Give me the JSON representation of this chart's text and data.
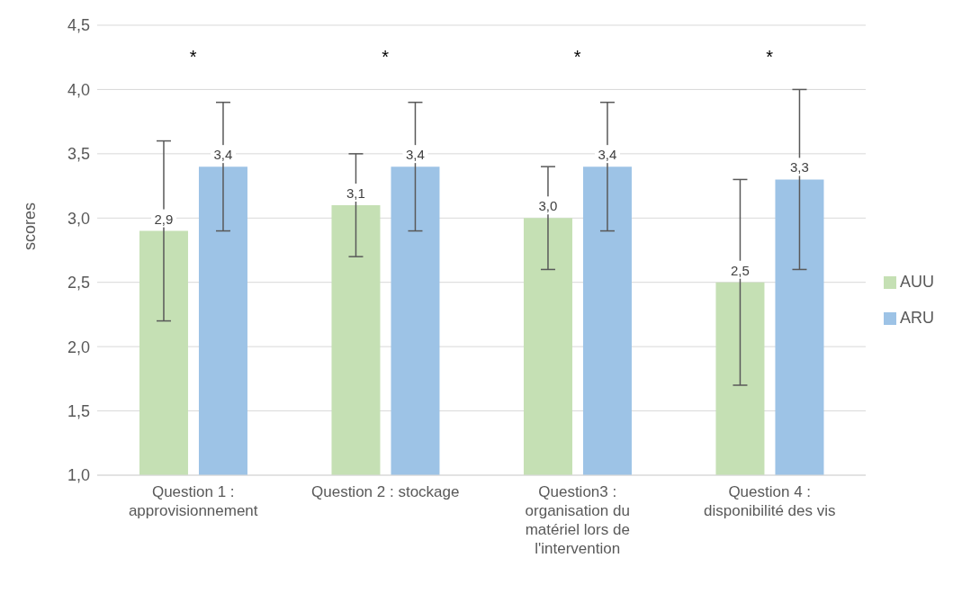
{
  "chart_data": {
    "type": "bar",
    "ylabel": "scores",
    "categories": [
      "Question 1 : approvisionnement",
      "Question 2 : stockage",
      "Question3 : organisation du matériel  lors de l'intervention",
      "Question 4 : disponibilité des vis"
    ],
    "series": [
      {
        "name": "AUU",
        "color": "#c5e0b4",
        "values": [
          2.9,
          3.1,
          3.0,
          2.5
        ],
        "errors": [
          [
            2.2,
            3.6
          ],
          [
            2.7,
            3.5
          ],
          [
            2.6,
            3.4
          ],
          [
            1.7,
            3.3
          ]
        ],
        "value_labels": [
          "2,9",
          "3,1",
          "3,0",
          "2,5"
        ]
      },
      {
        "name": "ARU",
        "color": "#9dc3e6",
        "values": [
          3.4,
          3.4,
          3.4,
          3.3
        ],
        "errors": [
          [
            2.9,
            3.9
          ],
          [
            2.9,
            3.9
          ],
          [
            2.9,
            3.9
          ],
          [
            2.6,
            4.0
          ]
        ],
        "value_labels": [
          "3,4",
          "3,4",
          "3,4",
          "3,3"
        ]
      }
    ],
    "ylim": [
      1,
      4.5
    ],
    "yticks": [
      {
        "value": 1,
        "label": "1,0"
      },
      {
        "value": 1.5,
        "label": "1,5"
      },
      {
        "value": 2,
        "label": "2,0"
      },
      {
        "value": 2.5,
        "label": "2,5"
      },
      {
        "value": 3,
        "label": "3,0"
      },
      {
        "value": 3.5,
        "label": "3,5"
      },
      {
        "value": 4,
        "label": "4,0"
      },
      {
        "value": 4.5,
        "label": "4,5"
      }
    ],
    "grid": "y",
    "legend": "right",
    "annotations": [
      "*",
      "*",
      "*",
      "*"
    ]
  }
}
